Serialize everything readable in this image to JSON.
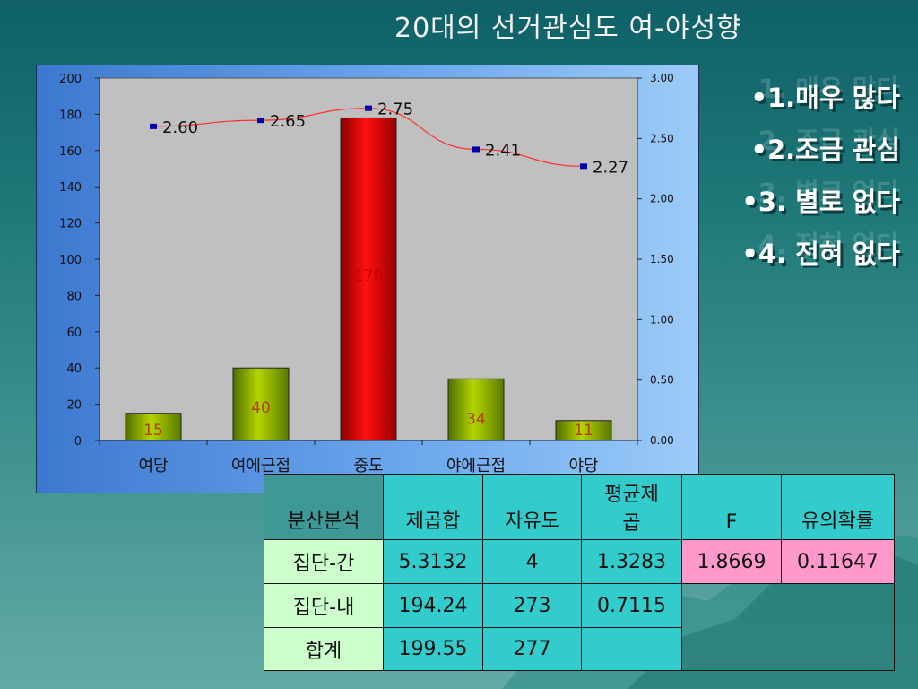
{
  "slide": {
    "title": "20대의 선거관심도 여-야성향"
  },
  "legend": {
    "items": [
      "•1.매우 많다",
      "•2.조금 관심",
      "•3. 별로 없다",
      "•4. 전혀 없다"
    ],
    "ghost_items": [
      "1. 매우 많다",
      "2. 조금 관심",
      "3. 별로 없다",
      "4. 전혀 없다"
    ]
  },
  "colors": {
    "bar_green": "#8db000",
    "bar_red": "#ee0000",
    "line_red": "#ff3030",
    "marker_blue": "#0000aa",
    "plot_bg": "#c0c0c0",
    "table_head": "#33cccc",
    "table_rowhead": "#ccffcc",
    "table_highlight": "#ff99cc"
  },
  "chart_data": {
    "type": "bar",
    "categories": [
      "여당",
      "여에근접",
      "중도",
      "야에근접",
      "야당"
    ],
    "series": [
      {
        "values": [
          15,
          40,
          178,
          34,
          11
        ],
        "axis": "left",
        "type": "bar"
      },
      {
        "values": [
          2.6,
          2.65,
          2.75,
          2.41,
          2.27
        ],
        "axis": "right",
        "type": "line"
      }
    ],
    "data_labels_bar": [
      "15",
      "40",
      "178",
      "34",
      "11"
    ],
    "data_labels_line": [
      "2.60",
      "2.65",
      "2.75",
      "2.41",
      "2.27"
    ],
    "ylim_left": [
      0,
      200
    ],
    "ylim_right": [
      0,
      3.0
    ],
    "yticks_left": [
      "0",
      "20",
      "40",
      "60",
      "80",
      "100",
      "120",
      "140",
      "160",
      "180",
      "200"
    ],
    "yticks_right": [
      "0.00",
      "0.50",
      "1.00",
      "1.50",
      "2.00",
      "2.50",
      "3.00"
    ],
    "highlight_index": 2,
    "grid": false,
    "title": "",
    "xlabel": "",
    "ylabel": ""
  },
  "anova_table": {
    "header": [
      "분산분석",
      "제곱합",
      "자유도",
      "평균제곱",
      "F",
      "유의확률"
    ],
    "header_mean_sq_line1": "평균제",
    "header_mean_sq_line2": "곱",
    "rows": [
      [
        "집단-간",
        "5.3132",
        "4",
        "1.3283",
        "1.8669",
        "0.11647"
      ],
      [
        "집단-내",
        "194.24",
        "273",
        "0.7115",
        "",
        ""
      ],
      [
        "합계",
        "199.55",
        "277",
        "",
        "",
        ""
      ]
    ]
  }
}
